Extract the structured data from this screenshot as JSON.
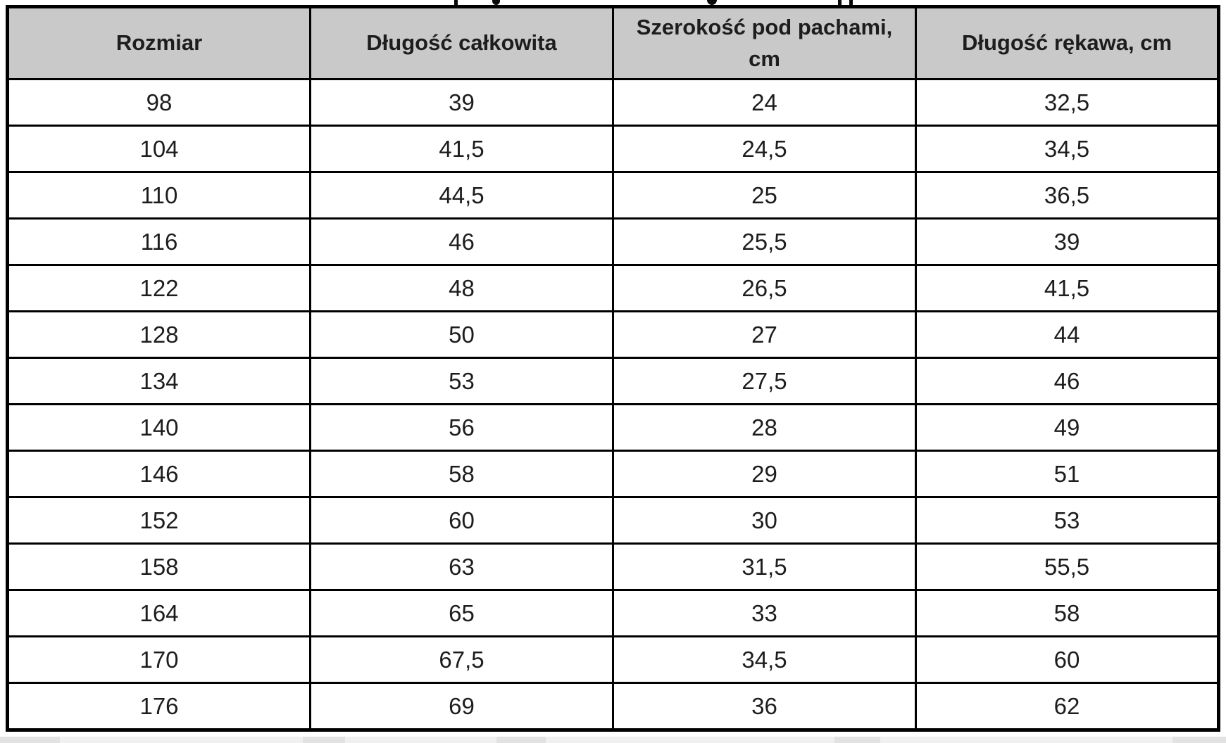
{
  "table": {
    "headers": [
      "Rozmiar",
      "Długość całkowita",
      "Szerokość pod pachami, cm",
      "Długość rękawa, cm"
    ],
    "rows": [
      [
        "98",
        "39",
        "24",
        "32,5"
      ],
      [
        "104",
        "41,5",
        "24,5",
        "34,5"
      ],
      [
        "110",
        "44,5",
        "25",
        "36,5"
      ],
      [
        "116",
        "46",
        "25,5",
        "39"
      ],
      [
        "122",
        "48",
        "26,5",
        "41,5"
      ],
      [
        "128",
        "50",
        "27",
        "44"
      ],
      [
        "134",
        "53",
        "27,5",
        "46"
      ],
      [
        "140",
        "56",
        "28",
        "49"
      ],
      [
        "146",
        "58",
        "29",
        "51"
      ],
      [
        "152",
        "60",
        "30",
        "53"
      ],
      [
        "158",
        "63",
        "31,5",
        "55,5"
      ],
      [
        "164",
        "65",
        "33",
        "58"
      ],
      [
        "170",
        "67,5",
        "34,5",
        "60"
      ],
      [
        "176",
        "69",
        "36",
        "62"
      ]
    ]
  },
  "chart_data": {
    "type": "table",
    "columns": [
      "Rozmiar",
      "Długość całkowita",
      "Szerokość pod pachami, cm",
      "Długość rękawa, cm"
    ],
    "rows": [
      [
        98,
        39,
        24,
        32.5
      ],
      [
        104,
        41.5,
        24.5,
        34.5
      ],
      [
        110,
        44.5,
        25,
        36.5
      ],
      [
        116,
        46,
        25.5,
        39
      ],
      [
        122,
        48,
        26.5,
        41.5
      ],
      [
        128,
        50,
        27,
        44
      ],
      [
        134,
        53,
        27.5,
        46
      ],
      [
        140,
        56,
        28,
        49
      ],
      [
        146,
        58,
        29,
        51
      ],
      [
        152,
        60,
        30,
        53
      ],
      [
        158,
        63,
        31.5,
        55.5
      ],
      [
        164,
        65,
        33,
        58
      ],
      [
        170,
        67.5,
        34.5,
        60
      ],
      [
        176,
        69,
        36,
        62
      ]
    ]
  },
  "colors": {
    "header_bg": "#c9c9c9",
    "border": "#000000",
    "text": "#1d1d1d",
    "page_bg": "#ffffff",
    "strip_bg": "#f0f0f0"
  }
}
